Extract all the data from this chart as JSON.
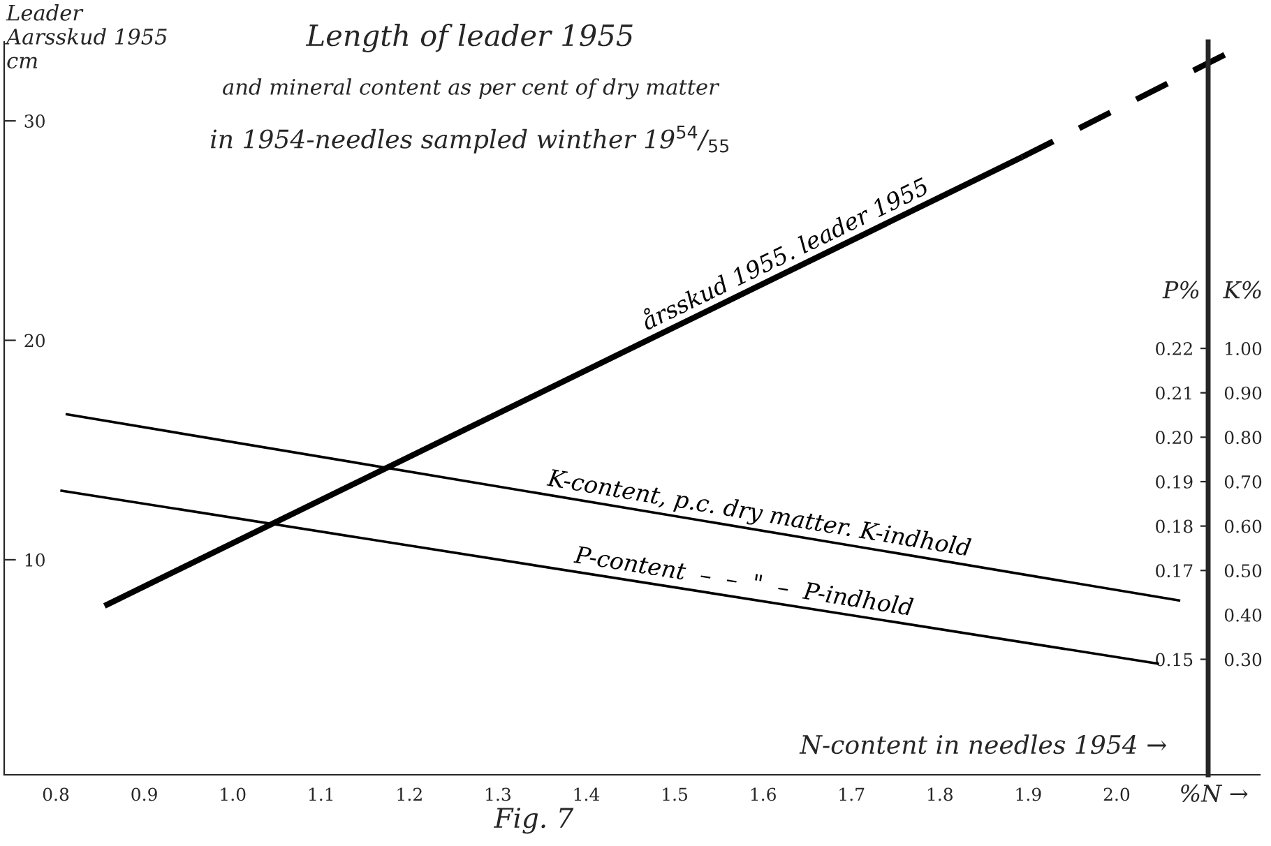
{
  "chart_data": {
    "type": "line",
    "title": "Length of leader 1955",
    "subtitle": "and mineral content as per cent of dry matter",
    "ylabel": "Leader\nAarsskud 1955\ncm",
    "y2label": "P%",
    "y3label": "K%",
    "xlabel": "N-content in needles 1954 →",
    "annotations": [
      "in 1954-needles sampled winther 19$^{54}$/$_{55}$",
      "%N →",
      "Fig. 7"
    ],
    "xlim": [
      0.7415,
      2.162
    ],
    "xticks": [
      0.8,
      0.9,
      {
        "value": 1.0,
        "label": "1.0"
      },
      1.1,
      1.2,
      1.3,
      1.4,
      1.5,
      1.6,
      1.7,
      1.8,
      1.9,
      {
        "value": 2.0,
        "label": "2.0"
      }
    ],
    "ylim": [
      0.2,
      33.6
    ],
    "yticks": [
      10,
      20,
      30
    ],
    "y2lim": [
      0.124,
      0.289
    ],
    "y2ticks": [
      0.15,
      0.17,
      0.18,
      0.19,
      {
        "value": 0.2,
        "label": "0.20"
      },
      0.21,
      0.22
    ],
    "y3lim": [
      0.04,
      1.69
    ],
    "y3ticks": [
      {
        "value": 0.3,
        "label": "0.30"
      },
      {
        "value": 0.4,
        "label": "0.40"
      },
      {
        "value": 0.5,
        "label": "0.50"
      },
      {
        "value": 0.6,
        "label": "0.60"
      },
      {
        "value": 0.7,
        "label": "0.70"
      },
      {
        "value": 0.8,
        "label": "0.80"
      },
      {
        "value": 0.9,
        "label": "0.90"
      },
      {
        "value": 1.0,
        "label": "1.00"
      }
    ],
    "grid": false,
    "series": [
      {
        "name": "årsskud 1955. leader 1955",
        "color": "#000000",
        "x": [
          0.855,
          1.893
        ],
        "values": [
          7.9,
          28.35
        ],
        "line_style": "solid"
      },
      {
        "color": "#000000",
        "x": [
          1.893,
          2.124
        ],
        "values": [
          28.35,
          33.05
        ],
        "line_style": "dashed"
      },
      {
        "name": "K-content, p.c. dry matter. K-indhold",
        "color": "#000000",
        "x": [
          0.811,
          2.072
        ],
        "values": [
          0.852,
          0.432
        ],
        "axis": "y3",
        "line_style": "solid"
      },
      {
        "name": "P-content  –  –  \"  –  P-indhold",
        "color": "#000000",
        "x": [
          0.805,
          2.048
        ],
        "values": [
          0.188,
          0.149
        ],
        "axis": "y2",
        "line_style": "solid"
      }
    ]
  }
}
